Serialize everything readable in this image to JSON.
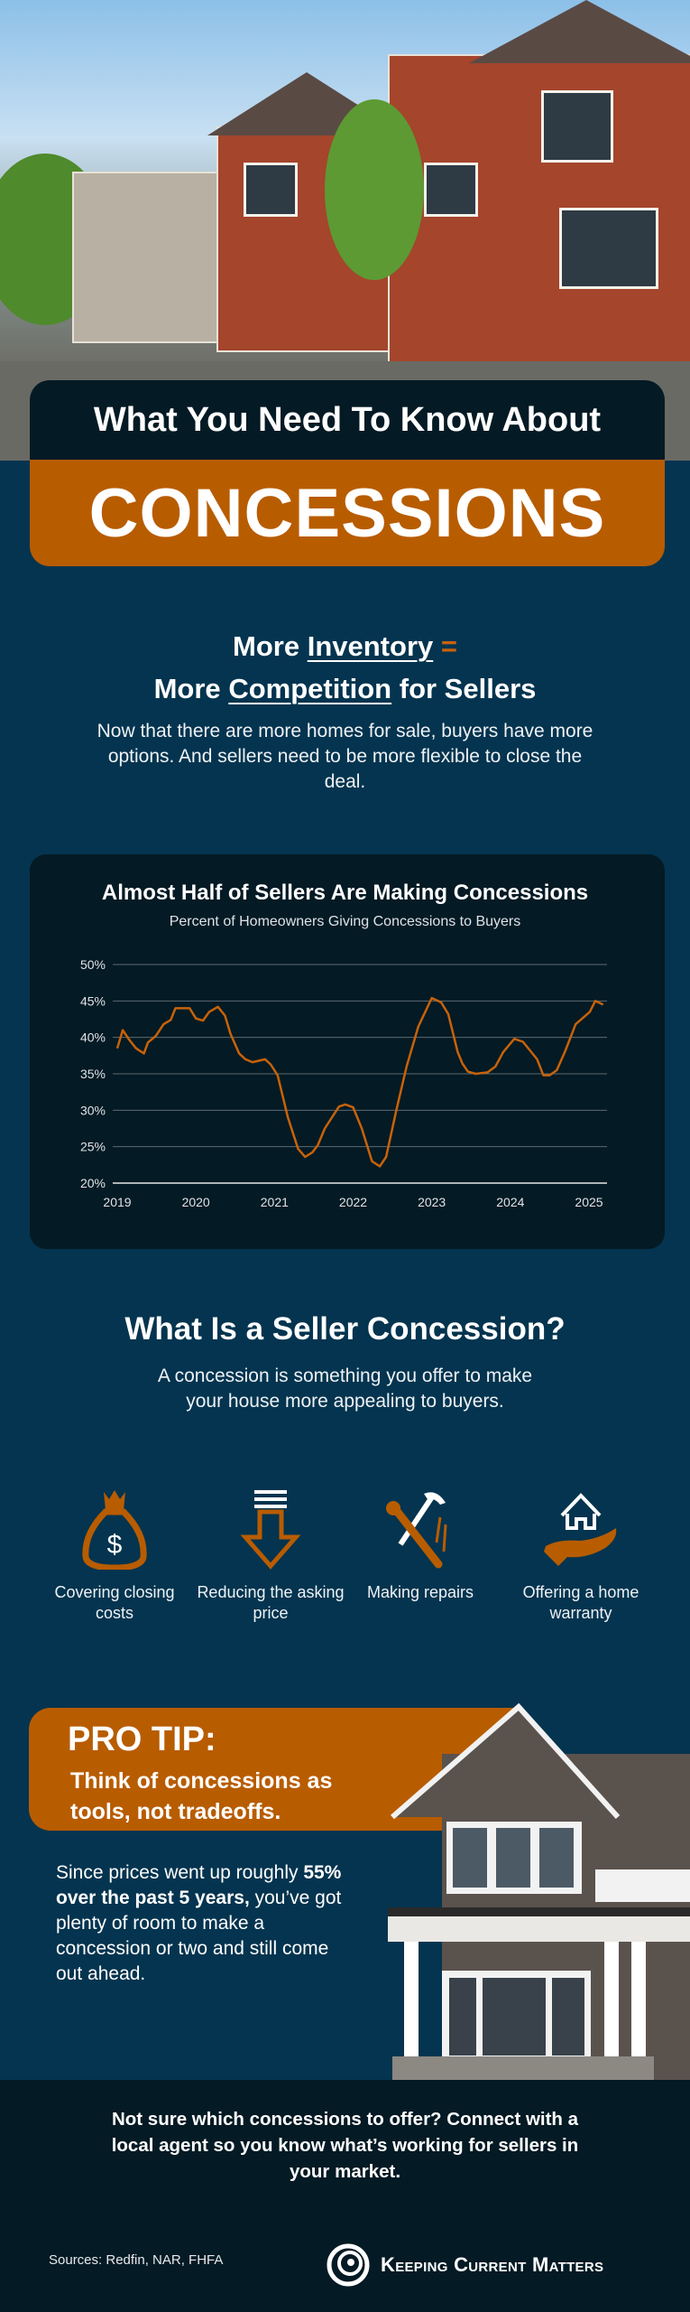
{
  "header": {
    "title_line": "What You Need To Know About",
    "title_main": "CONCESSIONS"
  },
  "intro": {
    "h_more1": "More",
    "h_inventory": "Inventory",
    "h_equals": "=",
    "h_more2": "More",
    "h_competition": "Competition",
    "h_rest": "for Sellers",
    "paragraph": "Now that there are more homes for sale, buyers have more options. And sellers need to be more flexible to close the deal."
  },
  "colors": {
    "navy": "#04344f",
    "dark": "#041a24",
    "orange": "#b85c00",
    "line": "#c8620a"
  },
  "chart_data": {
    "type": "line",
    "title": "Almost Half of Sellers Are Making Concessions",
    "subtitle": "Percent of Homeowners Giving Concessions to Buyers",
    "xlabel": "",
    "ylabel": "",
    "ylim": [
      20,
      50
    ],
    "xlim": [
      2019,
      2025.2
    ],
    "y_ticks": [
      "20%",
      "25%",
      "30%",
      "35%",
      "40%",
      "45%",
      "50%"
    ],
    "y_tick_values": [
      20,
      25,
      30,
      35,
      40,
      45,
      50
    ],
    "x_ticks": [
      "2019",
      "2020",
      "2021",
      "2022",
      "2023",
      "2024",
      "2025"
    ],
    "x_tick_values": [
      2019,
      2020,
      2021,
      2022,
      2023,
      2024,
      2025
    ],
    "grid": true,
    "series": [
      {
        "name": "Percent of Homeowners Giving Concessions",
        "x": [
          2019.0,
          2019.07,
          2019.15,
          2019.24,
          2019.34,
          2019.39,
          2019.49,
          2019.59,
          2019.68,
          2019.74,
          2019.92,
          2020.0,
          2020.09,
          2020.17,
          2020.28,
          2020.37,
          2020.44,
          2020.55,
          2020.63,
          2020.72,
          2020.88,
          2020.95,
          2021.04,
          2021.17,
          2021.3,
          2021.39,
          2021.48,
          2021.55,
          2021.64,
          2021.82,
          2021.9,
          2022.0,
          2022.11,
          2022.24,
          2022.34,
          2022.42,
          2022.55,
          2022.68,
          2022.83,
          2023.0,
          2023.12,
          2023.21,
          2023.33,
          2023.39,
          2023.46,
          2023.56,
          2023.71,
          2023.81,
          2023.91,
          2024.05,
          2024.16,
          2024.34,
          2024.42,
          2024.5,
          2024.59,
          2024.7,
          2024.83,
          2025.01,
          2025.08,
          2025.18
        ],
        "values": [
          38.5,
          41,
          39.7,
          38.5,
          37.8,
          39.3,
          40.2,
          41.8,
          42.4,
          44,
          44,
          42.6,
          42.3,
          43.5,
          44.2,
          43,
          40.5,
          37.8,
          37,
          36.6,
          37,
          36.3,
          34.8,
          29,
          24.7,
          23.6,
          24.2,
          25.2,
          27.5,
          30.5,
          30.8,
          30.4,
          27.5,
          23,
          22.3,
          23.6,
          30,
          36,
          41.5,
          45.4,
          44.8,
          43.2,
          38,
          36.4,
          35.3,
          35,
          35.2,
          36,
          38,
          39.8,
          39.4,
          37,
          34.8,
          34.8,
          35.5,
          38.2,
          41.8,
          43.5,
          45,
          44.5
        ]
      }
    ]
  },
  "concession": {
    "heading": "What Is a Seller Concession?",
    "paragraph": "A concession is something you offer to make your house more appealing to buyers.",
    "items": [
      {
        "label": "Covering closing costs",
        "icon": "money-bag-icon"
      },
      {
        "label": "Reducing the asking price",
        "icon": "down-arrow-icon"
      },
      {
        "label": "Making repairs",
        "icon": "tools-icon"
      },
      {
        "label": "Offering a home warranty",
        "icon": "house-in-hand-icon"
      }
    ]
  },
  "pro_tip": {
    "heading": "PRO TIP:",
    "subheading": "Think of concessions as tools, not tradeoffs.",
    "p_start": "Since prices went up roughly",
    "p_bold": "55% over the past 5 years,",
    "p_end": "you’ve got plenty of room to make a concession or two and still come out ahead."
  },
  "footer": {
    "cta": "Not sure which concessions to offer? Connect with a local agent so you know what’s working for sellers in your market.",
    "sources": "Sources: Redfin, NAR, FHFA",
    "brand": "Keeping Current Matters"
  }
}
